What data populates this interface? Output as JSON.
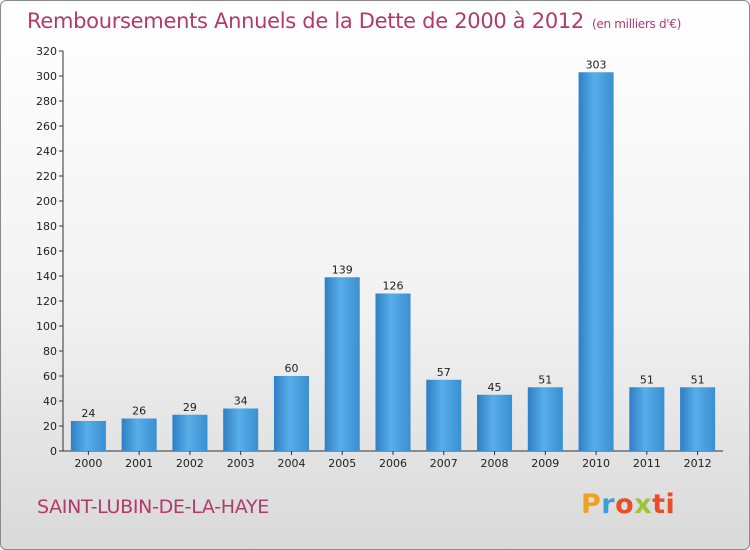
{
  "chart_data": {
    "type": "bar",
    "title": "Remboursements Annuels de la Dette de 2000 à 2012",
    "unit_note": "(en milliers d'€)",
    "categories": [
      "2000",
      "2001",
      "2002",
      "2003",
      "2004",
      "2005",
      "2006",
      "2007",
      "2008",
      "2009",
      "2010",
      "2011",
      "2012"
    ],
    "values": [
      24,
      26,
      29,
      34,
      60,
      139,
      126,
      57,
      45,
      51,
      303,
      51,
      51
    ],
    "yticks": [
      "0",
      "20",
      "40",
      "60",
      "80",
      "100",
      "120",
      "140",
      "160",
      "180",
      "200",
      "220",
      "240",
      "260",
      "280",
      "300",
      "320"
    ],
    "ylim": [
      0,
      320
    ],
    "grid": false,
    "bar_color": "#3a92d6"
  },
  "commune": "SAINT-LUBIN-DE-LA-HAYE",
  "logo": {
    "p": "P",
    "r": "r",
    "o": "o",
    "x": "x",
    "i": "i",
    "t": "ti"
  }
}
